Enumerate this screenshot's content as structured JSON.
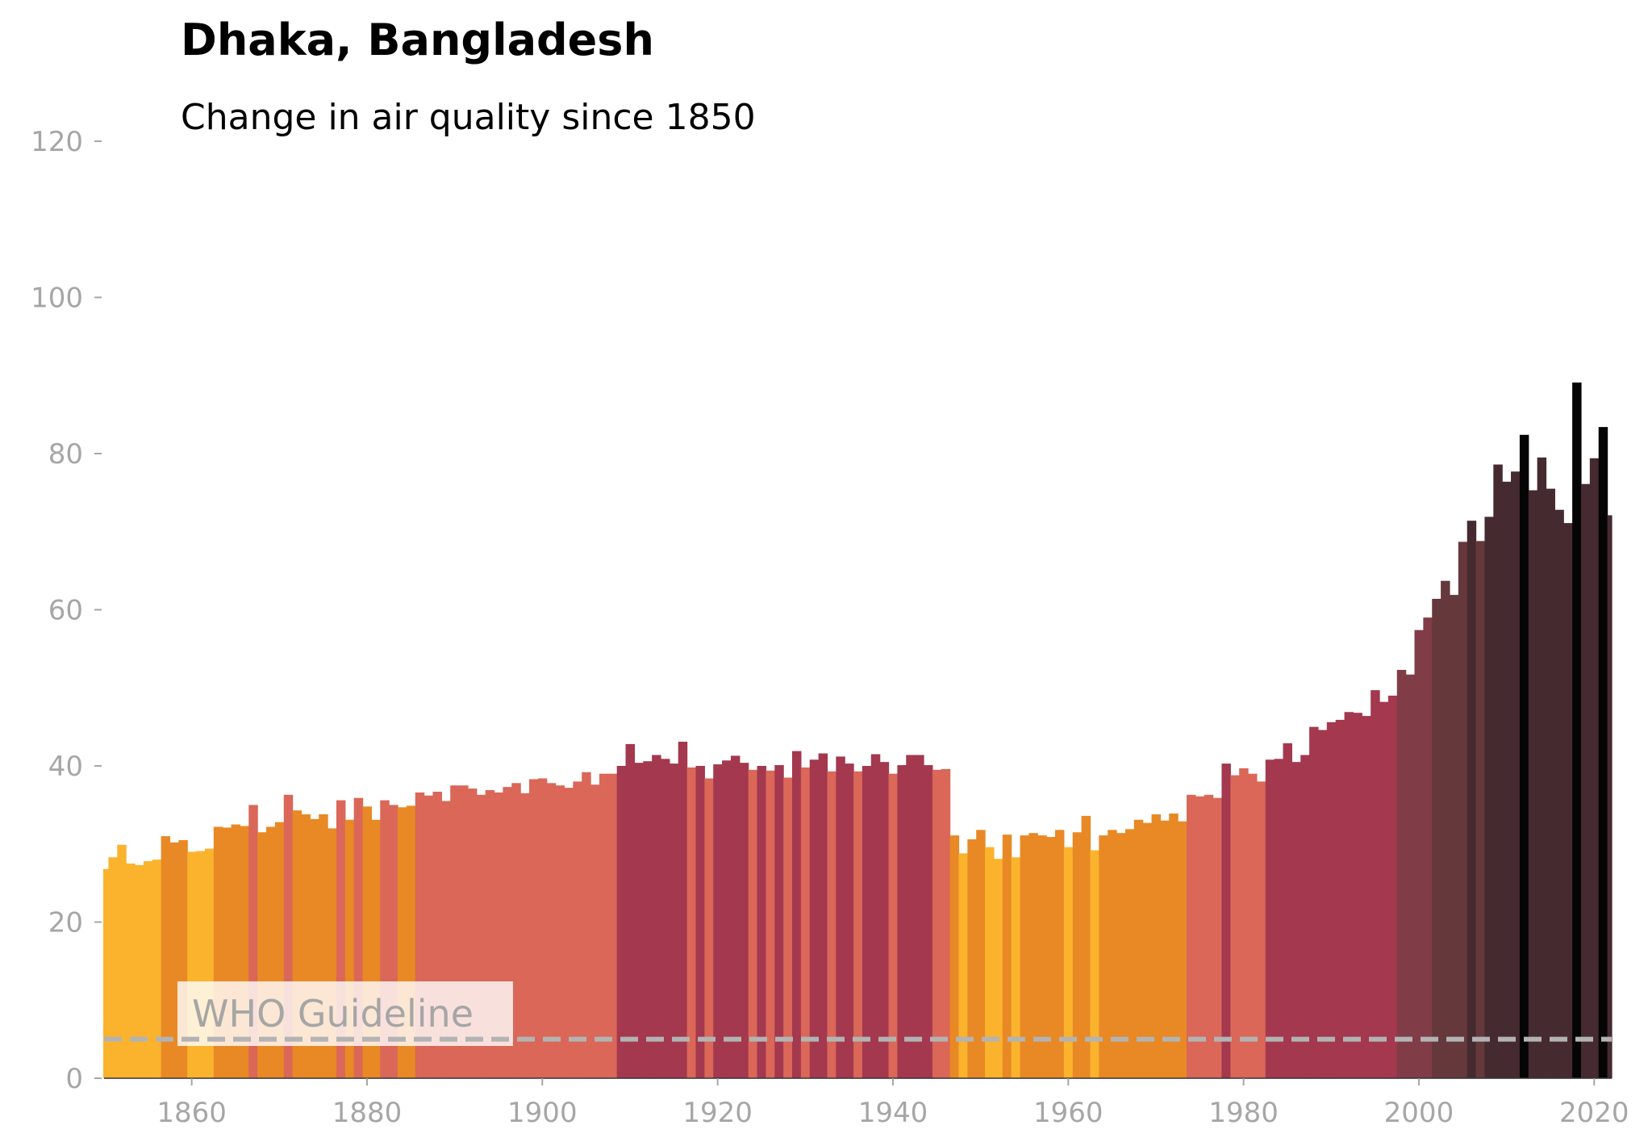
{
  "chart_data": {
    "type": "bar",
    "title": "Dhaka, Bangladesh",
    "subtitle": "Change in air quality since 1850",
    "xlabel": "",
    "ylabel": "",
    "xlim": [
      1850,
      2022
    ],
    "ylim": [
      0,
      120
    ],
    "x_ticks": [
      1860,
      1880,
      1900,
      1920,
      1940,
      1960,
      1980,
      2000,
      2020
    ],
    "y_ticks": [
      0,
      20,
      40,
      60,
      80,
      100,
      120
    ],
    "grid": false,
    "legend": "none",
    "guideline": {
      "label": "WHO Guideline",
      "value": 5,
      "color": "#b3b3b3"
    },
    "color_scale": {
      "thresholds": [
        30,
        35,
        40,
        50,
        60,
        70,
        80
      ],
      "colors": [
        "#fbb32e",
        "#e88925",
        "#da6758",
        "#a3384e",
        "#803c47",
        "#65383c",
        "#452a30",
        "#050505"
      ]
    },
    "start_year": 1850,
    "values": [
      26.8,
      28.3,
      29.9,
      27.5,
      27.3,
      27.8,
      28.0,
      31.0,
      30.2,
      30.5,
      29.0,
      29.1,
      29.4,
      32.2,
      32.1,
      32.5,
      32.3,
      35.0,
      31.5,
      32.2,
      32.8,
      36.3,
      34.3,
      33.8,
      33.2,
      33.8,
      32.0,
      35.6,
      33.1,
      35.9,
      34.8,
      33.1,
      35.6,
      35.0,
      34.7,
      34.9,
      36.6,
      36.2,
      36.7,
      35.5,
      37.5,
      37.5,
      37.1,
      36.3,
      36.9,
      36.6,
      37.3,
      37.8,
      36.5,
      38.3,
      38.4,
      37.8,
      37.5,
      37.2,
      38.0,
      39.2,
      37.6,
      39.0,
      39.0,
      40.0,
      42.8,
      40.4,
      40.6,
      41.4,
      40.9,
      40.3,
      43.1,
      39.8,
      40.0,
      38.4,
      40.2,
      40.7,
      41.3,
      40.4,
      39.5,
      40.0,
      39.4,
      40.1,
      38.5,
      41.9,
      39.8,
      40.8,
      41.6,
      39.3,
      41.2,
      40.3,
      39.3,
      40.0,
      41.5,
      40.5,
      39.0,
      40.1,
      41.4,
      41.4,
      40.1,
      39.5,
      39.6,
      31.1,
      28.8,
      30.6,
      31.8,
      29.6,
      28.1,
      31.2,
      28.3,
      31.1,
      31.4,
      31.1,
      30.9,
      31.8,
      29.6,
      31.5,
      33.6,
      29.2,
      31.1,
      31.8,
      31.4,
      31.9,
      33.1,
      32.7,
      33.8,
      33.0,
      33.9,
      32.9,
      36.3,
      36.1,
      36.3,
      35.9,
      40.3,
      38.8,
      39.7,
      39.0,
      38.0,
      40.8,
      40.9,
      42.9,
      40.5,
      41.4,
      45.0,
      44.6,
      45.6,
      45.9,
      46.9,
      46.8,
      46.4,
      49.7,
      48.2,
      49.0,
      52.3,
      51.7,
      57.4,
      59.0,
      61.4,
      63.7,
      61.9,
      68.7,
      71.4,
      68.8,
      71.9,
      78.6,
      76.4,
      77.7,
      82.4,
      75.3,
      79.5,
      75.5,
      72.8,
      71.1,
      89.1,
      76.1,
      79.4,
      83.4,
      72.1
    ]
  }
}
